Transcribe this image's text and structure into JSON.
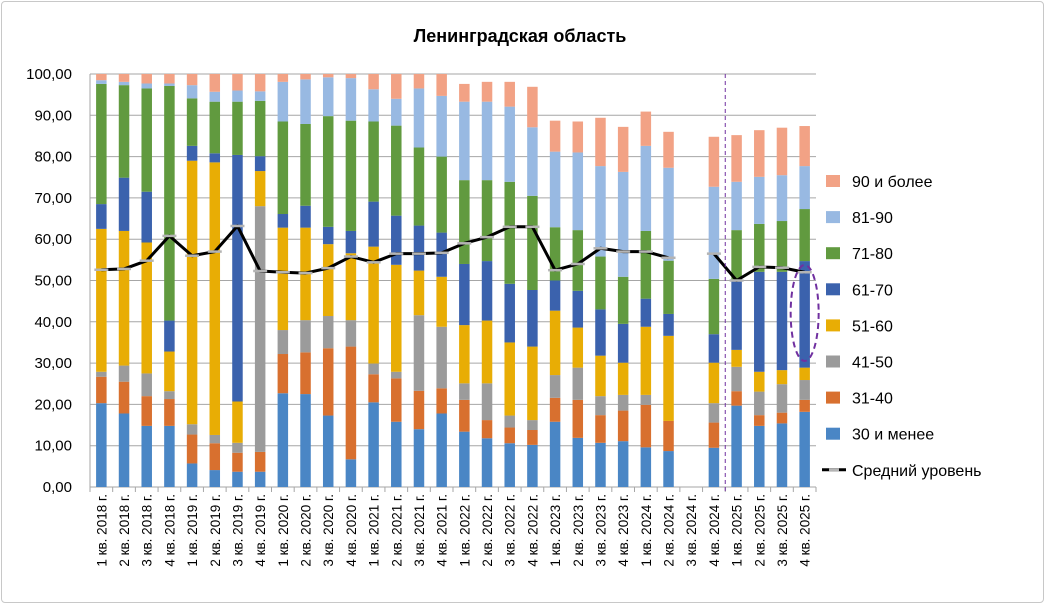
{
  "chart_data": {
    "type": "bar",
    "stacked": true,
    "title": "Ленинградская область",
    "xlabel": "",
    "ylabel": "",
    "ylim": [
      0,
      100
    ],
    "yticks": [
      "0,00",
      "10,00",
      "20,00",
      "30,00",
      "40,00",
      "50,00",
      "60,00",
      "70,00",
      "80,00",
      "90,00",
      "100,00"
    ],
    "grid": true,
    "legend_position": "right",
    "categories": [
      "1 кв. 2018 г.",
      "2 кв. 2018 г.",
      "3 кв. 2018 г.",
      "4 кв. 2018 г.",
      "1 кв. 2019 г.",
      "2 кв. 2019 г.",
      "3 кв. 2019 г.",
      "4 кв. 2019 г.",
      "1 кв. 2020 г.",
      "2 кв. 2020 г.",
      "3 кв. 2020 г.",
      "4 кв. 2020 г.",
      "1 кв. 2021 г.",
      "2 кв. 2021 г.",
      "3 кв. 2021 г.",
      "4 кв. 2021 г.",
      "1 кв. 2022 г.",
      "2 кв. 2022 г.",
      "3 кв. 2022 г.",
      "4 кв. 2022 г.",
      "1 кв. 2023 г.",
      "2 кв. 2023 г.",
      "3 кв. 2023 г.",
      "4 кв. 2023 г.",
      "1 кв. 2024 г.",
      "2 кв. 2024 г.",
      "3 кв. 2024 г.",
      "4 кв. 2024 г.",
      "1 кв. 2025 г.",
      "2 кв. 2025 г.",
      "3 кв. 2025 г.",
      "4 кв. 2025 г."
    ],
    "series": [
      {
        "name": "30 и менее",
        "color": "#4a86c5",
        "values": [
          20.3,
          17.8,
          14.8,
          14.8,
          5.7,
          4.1,
          3.7,
          3.7,
          22.7,
          22.5,
          17.3,
          6.7,
          20.5,
          15.8,
          14.0,
          17.8,
          13.4,
          11.8,
          10.6,
          10.2,
          15.8,
          11.9,
          10.7,
          11.1,
          9.6,
          8.7,
          null,
          9.5,
          19.7,
          14.8,
          15.4,
          18.2
        ]
      },
      {
        "name": "31-40",
        "color": "#d8702f",
        "values": [
          6.4,
          7.7,
          7.2,
          6.5,
          7.0,
          6.5,
          4.6,
          4.8,
          9.5,
          10.1,
          16.3,
          27.3,
          6.8,
          10.5,
          9.3,
          6.1,
          7.7,
          4.4,
          3.8,
          3.6,
          5.8,
          9.2,
          6.7,
          7.4,
          10.3,
          7.3,
          null,
          6.1,
          3.5,
          2.6,
          2.6,
          2.9
        ]
      },
      {
        "name": "41-50",
        "color": "#9b9b9b",
        "values": [
          1.2,
          3.9,
          5.5,
          1.9,
          2.5,
          2.0,
          2.4,
          59.5,
          5.8,
          7.8,
          7.8,
          6.4,
          2.6,
          1.6,
          18.3,
          14.9,
          4.0,
          8.9,
          2.9,
          2.4,
          5.5,
          7.8,
          4.6,
          3.8,
          2.4,
          0,
          null,
          4.7,
          5.9,
          5.7,
          6.9,
          4.8
        ]
      },
      {
        "name": "51-60",
        "color": "#e8ad05",
        "values": [
          34.6,
          32.6,
          31.7,
          9.6,
          63.8,
          66.0,
          10.0,
          8.5,
          24.8,
          22.4,
          17.4,
          16.2,
          28.3,
          25.9,
          10.8,
          12.1,
          14.1,
          15.2,
          17.7,
          17.8,
          15.6,
          9.7,
          9.8,
          7.8,
          16.5,
          20.6,
          null,
          9.8,
          4.1,
          4.8,
          3.4,
          3.0
        ]
      },
      {
        "name": "61-70",
        "color": "#3b62ad",
        "values": [
          6.0,
          12.9,
          12.3,
          7.5,
          3.6,
          2.2,
          59.7,
          3.6,
          3.3,
          5.3,
          4.2,
          5.4,
          10.9,
          11.9,
          10.9,
          10.7,
          14.8,
          14.4,
          14.2,
          13.7,
          7.3,
          8.9,
          11.2,
          9.4,
          6.8,
          5.3,
          null,
          6.9,
          16.7,
          24.2,
          23.8,
          25.8
        ]
      },
      {
        "name": "71-80",
        "color": "#619a3f",
        "values": [
          29.1,
          22.4,
          25.0,
          56.8,
          11.5,
          12.5,
          12.9,
          13.4,
          22.4,
          19.8,
          26.8,
          26.7,
          19.4,
          21.8,
          18.9,
          18.4,
          20.3,
          19.6,
          24.7,
          22.8,
          12.9,
          14.7,
          12.8,
          11.4,
          16.4,
          12.9,
          null,
          13.4,
          12.3,
          11.6,
          12.3,
          12.6
        ]
      },
      {
        "name": "81-90",
        "color": "#98b9e2",
        "values": [
          0.9,
          0.8,
          1.2,
          0.6,
          3.2,
          2.4,
          2.7,
          2.3,
          9.6,
          10.8,
          9.4,
          10.3,
          7.8,
          6.5,
          14.3,
          14.7,
          19.0,
          19.0,
          18.2,
          16.6,
          18.3,
          18.8,
          21.9,
          25.4,
          20.6,
          22.5,
          null,
          22.3,
          11.7,
          11.4,
          11.1,
          10.4
        ]
      },
      {
        "name": "90 и более",
        "color": "#f2a285",
        "values": [
          1.5,
          1.9,
          2.3,
          2.3,
          2.7,
          4.3,
          4.0,
          4.2,
          1.9,
          1.3,
          0.8,
          1.0,
          3.7,
          6.0,
          3.5,
          5.3,
          4.3,
          4.8,
          6.0,
          9.8,
          7.5,
          7.5,
          11.7,
          10.9,
          8.3,
          8.7,
          null,
          12.1,
          11.3,
          11.3,
          11.5,
          9.7
        ]
      }
    ],
    "line": {
      "name": "Средний уровень",
      "color": "#000000",
      "values": [
        52.6,
        52.8,
        54.8,
        60.8,
        56.0,
        57.0,
        63.2,
        52.3,
        52.0,
        51.8,
        53.0,
        55.8,
        54.4,
        56.5,
        56.5,
        56.7,
        59.0,
        60.5,
        63.0,
        63.0,
        52.5,
        54.0,
        57.8,
        57.0,
        57.0,
        55.5,
        null,
        56.5,
        50.0,
        53.3,
        53.1,
        52.0
      ]
    },
    "annotations": [
      "vertical dashed separator before 1 кв. 2025 г.",
      "dashed ellipse highlighting 61-70 segment of 4 кв. 2025 г."
    ]
  }
}
